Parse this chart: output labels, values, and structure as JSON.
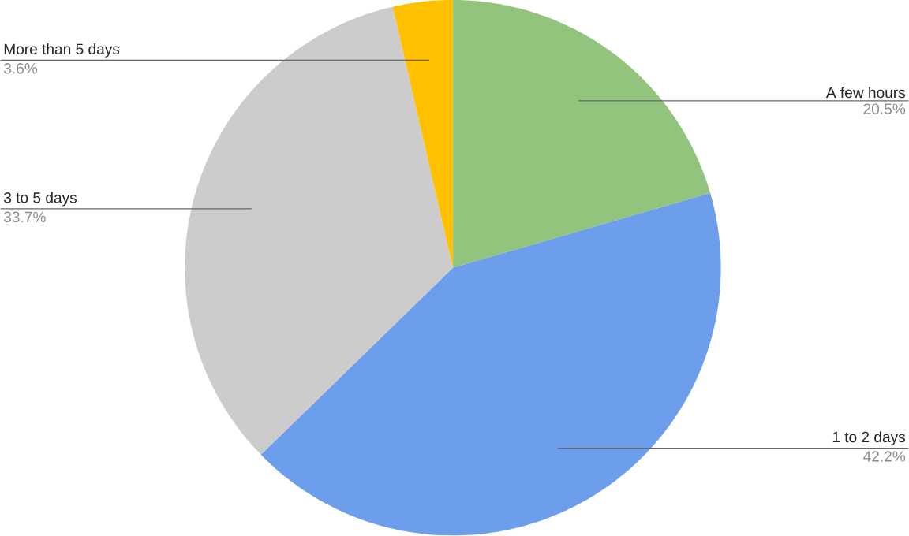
{
  "chart_data": {
    "type": "pie",
    "categories": [
      "A few hours",
      "1 to 2 days",
      "3 to 5 days",
      "More than 5 days"
    ],
    "values": [
      20.5,
      42.2,
      33.7,
      3.6
    ],
    "colors": [
      "#93c47d",
      "#6d9eeb",
      "#cccccc",
      "#ffc000"
    ],
    "value_labels": [
      "20.5%",
      "42.2%",
      "33.7%",
      "3.6%"
    ]
  }
}
